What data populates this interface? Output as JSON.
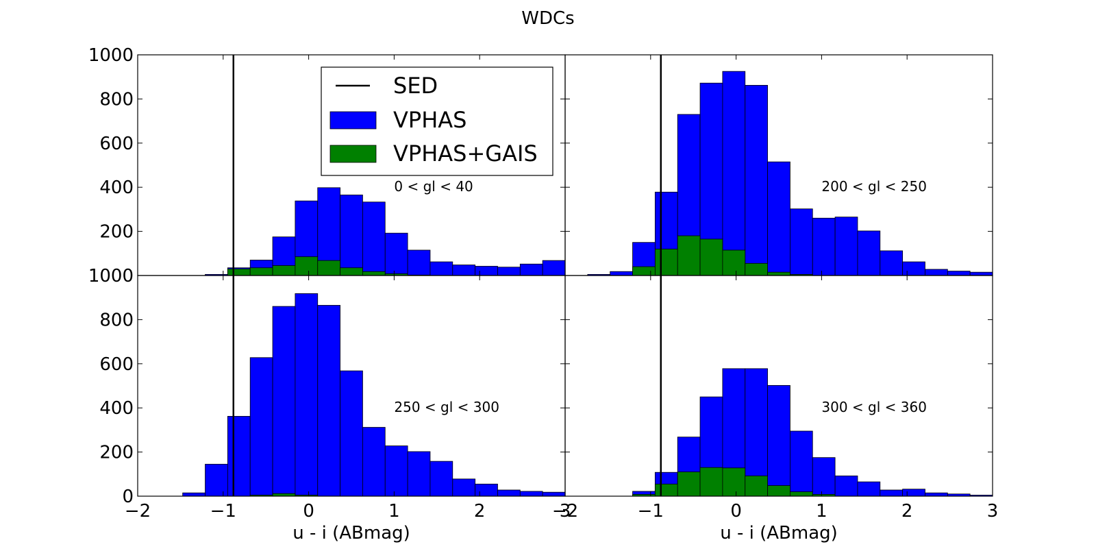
{
  "figure": {
    "suptitle": "WDCs"
  },
  "legend": {
    "placement": "upper-left-panel-top-right",
    "entries": [
      {
        "label": "SED",
        "kind": "line",
        "color": "#000000"
      },
      {
        "label": "VPHAS",
        "kind": "patch",
        "color": "#0000ff"
      },
      {
        "label": "VPHAS+GAIS",
        "kind": "patch",
        "color": "#008000"
      }
    ]
  },
  "chart_data": [
    {
      "type": "bar",
      "panel": "top-left",
      "region_label": "0 < gl < 40",
      "xlabel": "",
      "ylabel": "",
      "xlim": [
        -2,
        3
      ],
      "ylim": [
        0,
        1000
      ],
      "xticks": [],
      "yticks": [
        200,
        400,
        600,
        800,
        1000
      ],
      "bin_edges": [
        -2.0,
        -1.7368,
        -1.4737,
        -1.2105,
        -0.9474,
        -0.6842,
        -0.4211,
        -0.1579,
        0.1053,
        0.3684,
        0.6316,
        0.8947,
        1.1579,
        1.4211,
        1.6842,
        1.9474,
        2.2105,
        2.4737,
        2.7368,
        3.0
      ],
      "sed_line_x": -0.88,
      "series": [
        {
          "name": "VPHAS",
          "color": "#0000ff",
          "values": [
            0,
            0,
            0,
            5,
            35,
            70,
            175,
            338,
            398,
            365,
            333,
            192,
            115,
            62,
            48,
            42,
            38,
            52,
            68
          ]
        },
        {
          "name": "VPHAS+GAIS",
          "color": "#008000",
          "values": [
            0,
            0,
            0,
            0,
            30,
            35,
            45,
            85,
            68,
            35,
            18,
            8,
            2,
            0,
            0,
            0,
            0,
            0,
            0
          ]
        }
      ]
    },
    {
      "type": "bar",
      "panel": "top-right",
      "region_label": "200 < gl < 250",
      "xlabel": "",
      "ylabel": "",
      "xlim": [
        -2,
        3
      ],
      "ylim": [
        0,
        1000
      ],
      "xticks": [],
      "yticks": [],
      "bin_edges": [
        -2.0,
        -1.7368,
        -1.4737,
        -1.2105,
        -0.9474,
        -0.6842,
        -0.4211,
        -0.1579,
        0.1053,
        0.3684,
        0.6316,
        0.8947,
        1.1579,
        1.4211,
        1.6842,
        1.9474,
        2.2105,
        2.4737,
        2.7368,
        3.0
      ],
      "sed_line_x": -0.88,
      "series": [
        {
          "name": "VPHAS",
          "color": "#0000ff",
          "values": [
            0,
            5,
            18,
            150,
            378,
            730,
            872,
            925,
            862,
            515,
            302,
            260,
            265,
            202,
            112,
            62,
            28,
            20,
            15
          ]
        },
        {
          "name": "VPHAS+GAIS",
          "color": "#008000",
          "values": [
            0,
            0,
            0,
            40,
            120,
            180,
            165,
            115,
            55,
            15,
            5,
            0,
            0,
            0,
            0,
            0,
            0,
            0,
            0
          ]
        }
      ]
    },
    {
      "type": "bar",
      "panel": "bottom-left",
      "region_label": "250 < gl < 300",
      "xlabel": "u - i (ABmag)",
      "ylabel": "",
      "xlim": [
        -2,
        3
      ],
      "ylim": [
        0,
        1000
      ],
      "xticks": [
        "−2",
        "−1",
        "0",
        "1",
        "2",
        "3"
      ],
      "yticks": [
        0,
        200,
        400,
        600,
        800,
        1000
      ],
      "bin_edges": [
        -2.0,
        -1.7368,
        -1.4737,
        -1.2105,
        -0.9474,
        -0.6842,
        -0.4211,
        -0.1579,
        0.1053,
        0.3684,
        0.6316,
        0.8947,
        1.1579,
        1.4211,
        1.6842,
        1.9474,
        2.2105,
        2.4737,
        2.7368,
        3.0
      ],
      "sed_line_x": -0.88,
      "series": [
        {
          "name": "VPHAS",
          "color": "#0000ff",
          "values": [
            0,
            0,
            15,
            145,
            362,
            628,
            860,
            918,
            865,
            568,
            312,
            228,
            202,
            158,
            78,
            55,
            28,
            22,
            18
          ]
        },
        {
          "name": "VPHAS+GAIS",
          "color": "#008000",
          "values": [
            0,
            0,
            0,
            0,
            0,
            5,
            12,
            5,
            0,
            0,
            0,
            0,
            0,
            0,
            0,
            0,
            0,
            0,
            0
          ]
        }
      ]
    },
    {
      "type": "bar",
      "panel": "bottom-right",
      "region_label": "300 < gl < 360",
      "xlabel": "u - i (ABmag)",
      "ylabel": "",
      "xlim": [
        -2,
        3
      ],
      "ylim": [
        0,
        1000
      ],
      "xticks": [
        "−2",
        "−1",
        "0",
        "1",
        "2",
        "3"
      ],
      "yticks": [],
      "bin_edges": [
        -2.0,
        -1.7368,
        -1.4737,
        -1.2105,
        -0.9474,
        -0.6842,
        -0.4211,
        -0.1579,
        0.1053,
        0.3684,
        0.6316,
        0.8947,
        1.1579,
        1.4211,
        1.6842,
        1.9474,
        2.2105,
        2.4737,
        2.7368,
        3.0
      ],
      "sed_line_x": -0.88,
      "series": [
        {
          "name": "VPHAS",
          "color": "#0000ff",
          "values": [
            0,
            0,
            0,
            22,
            108,
            268,
            450,
            578,
            578,
            502,
            295,
            175,
            92,
            65,
            28,
            32,
            15,
            10,
            5
          ]
        },
        {
          "name": "VPHAS+GAIS",
          "color": "#008000",
          "values": [
            0,
            0,
            0,
            8,
            55,
            110,
            130,
            128,
            92,
            48,
            20,
            8,
            0,
            0,
            0,
            0,
            0,
            0,
            0
          ]
        }
      ]
    }
  ]
}
